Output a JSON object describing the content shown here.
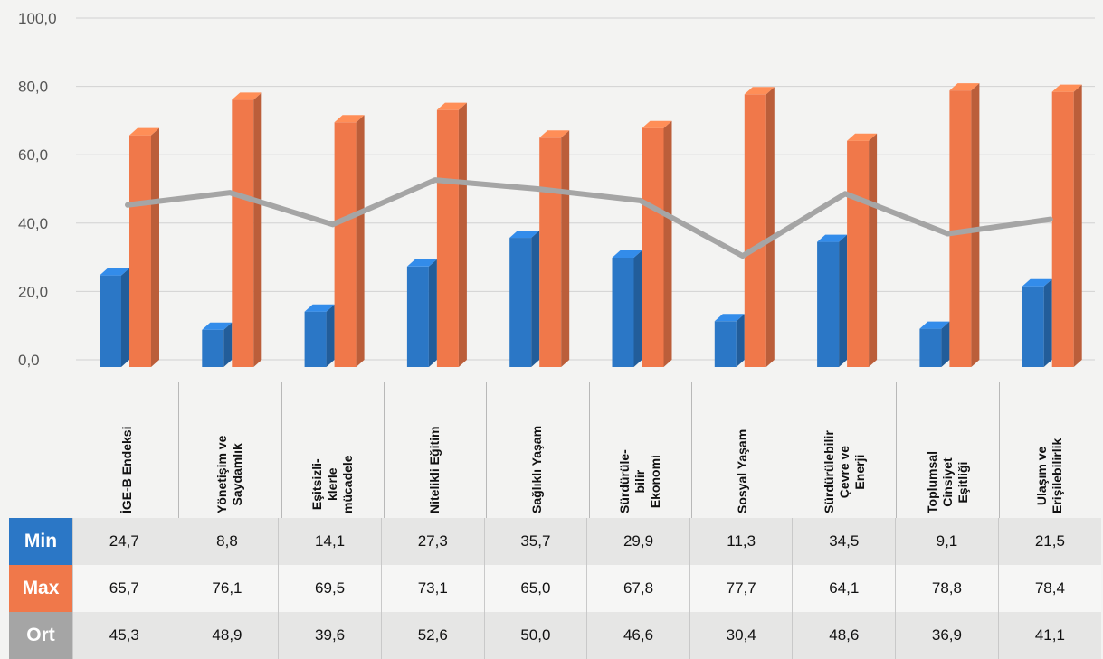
{
  "chart_data": {
    "type": "bar",
    "categories": [
      "İGE-B Endeksi",
      "Yönetişim ve Saydamlık",
      "Eşitsizli-klerle mücadele",
      "Nitelikli Eğitim",
      "Sağlıklı Yaşam",
      "Sürdürüle-bilir Ekonomi",
      "Sosyal Yaşam",
      "Sürdürülebilir Çevre ve Enerji",
      "Toplumsal Cinsiyet Eşitliği",
      "Ulaşım ve Erişilebilirlik"
    ],
    "category_lines": [
      [
        "İGE-B Endeksi"
      ],
      [
        "Yönetişim ve",
        "Saydamlık"
      ],
      [
        "Eşitsizli-",
        "klerle",
        "mücadele"
      ],
      [
        "Nitelikli Eğitim"
      ],
      [
        "Sağlıklı Yaşam"
      ],
      [
        "Sürdürüle-",
        "bilir",
        "Ekonomi"
      ],
      [
        "Sosyal Yaşam"
      ],
      [
        "Sürdürülebilir",
        "Çevre ve",
        "Enerji"
      ],
      [
        "Toplumsal",
        "Cinsiyet",
        "Eşitliği"
      ],
      [
        "Ulaşım ve",
        "Erişilebilirlik"
      ]
    ],
    "series": [
      {
        "name": "Min",
        "kind": "bar",
        "color": "#2b77c6",
        "values": [
          24.7,
          8.8,
          14.1,
          27.3,
          35.7,
          29.9,
          11.3,
          34.5,
          9.1,
          21.5
        ],
        "labels": [
          "24,7",
          "8,8",
          "14,1",
          "27,3",
          "35,7",
          "29,9",
          "11,3",
          "34,5",
          "9,1",
          "21,5"
        ]
      },
      {
        "name": "Max",
        "kind": "bar",
        "color": "#f0784a",
        "values": [
          65.7,
          76.1,
          69.5,
          73.1,
          65.0,
          67.8,
          77.7,
          64.1,
          78.8,
          78.4
        ],
        "labels": [
          "65,7",
          "76,1",
          "69,5",
          "73,1",
          "65,0",
          "67,8",
          "77,7",
          "64,1",
          "78,8",
          "78,4"
        ]
      },
      {
        "name": "Ort",
        "kind": "line",
        "color": "#a5a5a5",
        "values": [
          45.3,
          48.9,
          39.6,
          52.6,
          50.0,
          46.6,
          30.4,
          48.6,
          36.9,
          41.1
        ],
        "labels": [
          "45,3",
          "48,9",
          "39,6",
          "52,6",
          "50,0",
          "46,6",
          "30,4",
          "48,6",
          "36,9",
          "41,1"
        ]
      }
    ],
    "yticks": [
      "0,0",
      "20,0",
      "40,0",
      "60,0",
      "80,0",
      "100,0"
    ],
    "ylim": [
      0,
      100
    ],
    "grid": true,
    "legend": "data-table-bottom"
  }
}
